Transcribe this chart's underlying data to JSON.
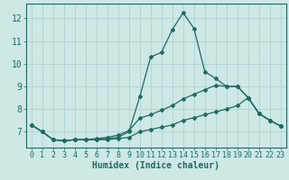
{
  "title": "",
  "xlabel": "Humidex (Indice chaleur)",
  "xlim": [
    -0.5,
    23.5
  ],
  "ylim": [
    6.3,
    12.65
  ],
  "yticks": [
    7,
    8,
    9,
    10,
    11,
    12
  ],
  "xticks": [
    0,
    1,
    2,
    3,
    4,
    5,
    6,
    7,
    8,
    9,
    10,
    11,
    12,
    13,
    14,
    15,
    16,
    17,
    18,
    19,
    20,
    21,
    22,
    23
  ],
  "bg_color": "#cde8e5",
  "grid_color": "#aacfcc",
  "line_color": "#1e6b5e",
  "line1_x": [
    0,
    1,
    2,
    3,
    4,
    5,
    6,
    7,
    8,
    9,
    10,
    11,
    12,
    13,
    14,
    15,
    16,
    17,
    18,
    19,
    20,
    21,
    22,
    23
  ],
  "line1_y": [
    7.3,
    7.0,
    6.65,
    6.6,
    6.65,
    6.65,
    6.65,
    6.7,
    6.75,
    7.0,
    8.55,
    10.3,
    10.5,
    11.5,
    12.25,
    11.55,
    9.65,
    9.35,
    9.0,
    9.0,
    8.5,
    7.8,
    7.5,
    7.25
  ],
  "line2_x": [
    0,
    1,
    2,
    3,
    4,
    5,
    6,
    7,
    8,
    9,
    10,
    11,
    12,
    13,
    14,
    15,
    16,
    17,
    18,
    19,
    20,
    21,
    22,
    23
  ],
  "line2_y": [
    7.3,
    7.0,
    6.65,
    6.6,
    6.65,
    6.65,
    6.7,
    6.75,
    6.85,
    7.05,
    7.6,
    7.75,
    7.95,
    8.15,
    8.45,
    8.65,
    8.85,
    9.05,
    9.0,
    9.0,
    8.5,
    7.8,
    7.5,
    7.25
  ],
  "line3_x": [
    0,
    1,
    2,
    3,
    4,
    5,
    6,
    7,
    8,
    9,
    10,
    11,
    12,
    13,
    14,
    15,
    16,
    17,
    18,
    19,
    20,
    21,
    22,
    23
  ],
  "line3_y": [
    7.3,
    7.0,
    6.65,
    6.6,
    6.65,
    6.65,
    6.65,
    6.65,
    6.7,
    6.75,
    7.0,
    7.1,
    7.2,
    7.3,
    7.5,
    7.62,
    7.75,
    7.88,
    8.0,
    8.15,
    8.5,
    7.8,
    7.5,
    7.25
  ],
  "tick_fontsize": 6,
  "xlabel_fontsize": 7,
  "marker_size": 2.0,
  "linewidth": 0.9
}
